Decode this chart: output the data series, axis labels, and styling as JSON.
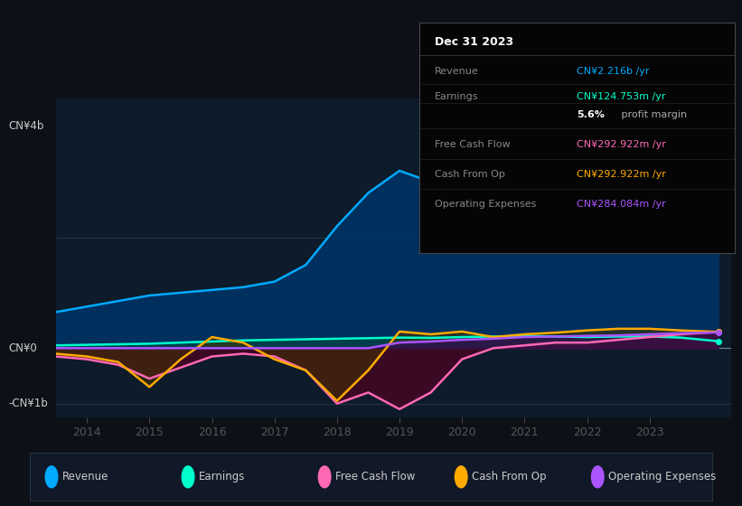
{
  "bg_color": "#0d1117",
  "plot_bg_color": "#0d1b2a",
  "info_title": "Dec 31 2023",
  "ylabel_top": "CN¥4b",
  "ylabel_zero": "CN¥0",
  "ylabel_bottom": "-CN¥1b",
  "xmin": 2013.5,
  "xmax": 2024.3,
  "ymin": -1250000000.0,
  "ymax": 4500000000.0,
  "xticks": [
    2014,
    2015,
    2016,
    2017,
    2018,
    2019,
    2020,
    2021,
    2022,
    2023
  ],
  "revenue": {
    "x": [
      2013.5,
      2014.0,
      2014.5,
      2015.0,
      2015.5,
      2016.0,
      2016.5,
      2017.0,
      2017.5,
      2018.0,
      2018.5,
      2019.0,
      2019.5,
      2020.0,
      2020.5,
      2021.0,
      2021.5,
      2022.0,
      2022.5,
      2023.0,
      2023.5,
      2024.1
    ],
    "y": [
      650000000.0,
      750000000.0,
      850000000.0,
      950000000.0,
      1000000000.0,
      1050000000.0,
      1100000000.0,
      1200000000.0,
      1500000000.0,
      2200000000.0,
      2800000000.0,
      3200000000.0,
      3000000000.0,
      2900000000.0,
      3000000000.0,
      3600000000.0,
      3400000000.0,
      3200000000.0,
      3300000000.0,
      3000000000.0,
      2600000000.0,
      2216000000.0
    ],
    "line_color": "#00aaff",
    "fill_color": "#003366"
  },
  "earnings": {
    "x": [
      2013.5,
      2014.0,
      2014.5,
      2015.0,
      2015.5,
      2016.0,
      2016.5,
      2017.0,
      2017.5,
      2018.0,
      2018.5,
      2019.0,
      2019.5,
      2020.0,
      2020.5,
      2021.0,
      2021.5,
      2022.0,
      2022.5,
      2023.0,
      2023.5,
      2024.1
    ],
    "y": [
      50000000.0,
      60000000.0,
      70000000.0,
      80000000.0,
      100000000.0,
      120000000.0,
      140000000.0,
      150000000.0,
      160000000.0,
      170000000.0,
      180000000.0,
      190000000.0,
      185000000.0,
      200000000.0,
      210000000.0,
      220000000.0,
      210000000.0,
      200000000.0,
      210000000.0,
      210000000.0,
      190000000.0,
      124700000.0
    ],
    "line_color": "#00ffcc",
    "fill_color": "#004444"
  },
  "free_cash_flow": {
    "x": [
      2013.5,
      2014.0,
      2014.5,
      2015.0,
      2015.5,
      2016.0,
      2016.5,
      2017.0,
      2017.5,
      2018.0,
      2018.5,
      2019.0,
      2019.5,
      2020.0,
      2020.5,
      2021.0,
      2021.5,
      2022.0,
      2022.5,
      2023.0,
      2023.5,
      2024.1
    ],
    "y": [
      -150000000.0,
      -200000000.0,
      -300000000.0,
      -550000000.0,
      -350000000.0,
      -150000000.0,
      -100000000.0,
      -150000000.0,
      -400000000.0,
      -1000000000.0,
      -800000000.0,
      -1100000000.0,
      -800000000.0,
      -200000000.0,
      0,
      50000000.0,
      100000000.0,
      100000000.0,
      150000000.0,
      200000000.0,
      250000000.0,
      292900000.0
    ],
    "line_color": "#ff69b4",
    "fill_color": "#550022"
  },
  "cash_from_op": {
    "x": [
      2013.5,
      2014.0,
      2014.5,
      2015.0,
      2015.5,
      2016.0,
      2016.5,
      2017.0,
      2017.5,
      2018.0,
      2018.5,
      2019.0,
      2019.5,
      2020.0,
      2020.5,
      2021.0,
      2021.5,
      2022.0,
      2022.5,
      2023.0,
      2023.5,
      2024.1
    ],
    "y": [
      -100000000.0,
      -150000000.0,
      -250000000.0,
      -700000000.0,
      -200000000.0,
      200000000.0,
      100000000.0,
      -200000000.0,
      -400000000.0,
      -950000000.0,
      -400000000.0,
      300000000.0,
      250000000.0,
      300000000.0,
      200000000.0,
      250000000.0,
      280000000.0,
      320000000.0,
      350000000.0,
      350000000.0,
      320000000.0,
      292900000.0
    ],
    "line_color": "#ffaa00",
    "fill_color": "#443300"
  },
  "op_expenses": {
    "x": [
      2013.5,
      2014.0,
      2014.5,
      2015.0,
      2015.5,
      2016.0,
      2016.5,
      2017.0,
      2017.5,
      2018.0,
      2018.5,
      2019.0,
      2019.5,
      2020.0,
      2020.5,
      2021.0,
      2021.5,
      2022.0,
      2022.5,
      2023.0,
      2023.5,
      2024.1
    ],
    "y": [
      0,
      0,
      0,
      0,
      0,
      0,
      0,
      0,
      0,
      0,
      0,
      100000000.0,
      120000000.0,
      150000000.0,
      170000000.0,
      200000000.0,
      210000000.0,
      220000000.0,
      230000000.0,
      250000000.0,
      270000000.0,
      284000000.0
    ],
    "line_color": "#aa55ff",
    "fill_color": "#330066"
  },
  "info_rows": [
    {
      "label": "Revenue",
      "value": "CN¥2.216b /yr",
      "value_color": "#00aaff"
    },
    {
      "label": "Earnings",
      "value": "CN¥124.753m /yr",
      "value_color": "#00ffcc"
    },
    {
      "label": "",
      "value": "profit margin",
      "value_color": "#aaaaaa",
      "prefix": "5.6%",
      "prefix_color": "#ffffff"
    },
    {
      "label": "Free Cash Flow",
      "value": "CN¥292.922m /yr",
      "value_color": "#ff69b4"
    },
    {
      "label": "Cash From Op",
      "value": "CN¥292.922m /yr",
      "value_color": "#ffaa00"
    },
    {
      "label": "Operating Expenses",
      "value": "CN¥284.084m /yr",
      "value_color": "#aa55ff"
    }
  ],
  "legend_items": [
    {
      "label": "Revenue",
      "color": "#00aaff"
    },
    {
      "label": "Earnings",
      "color": "#00ffcc"
    },
    {
      "label": "Free Cash Flow",
      "color": "#ff69b4"
    },
    {
      "label": "Cash From Op",
      "color": "#ffaa00"
    },
    {
      "label": "Operating Expenses",
      "color": "#aa55ff"
    }
  ]
}
